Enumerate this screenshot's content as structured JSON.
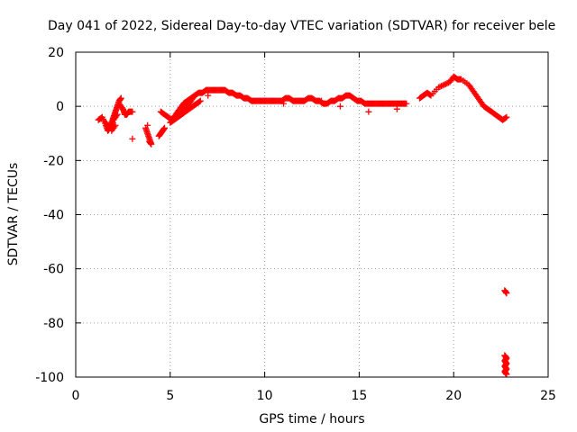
{
  "chart_data": {
    "type": "scatter",
    "title": "Day 041 of 2022, Sidereal Day-to-day VTEC variation (SDTVAR) for receiver bele",
    "xlabel": "GPS time / hours",
    "ylabel": "SDTVAR / TECUs",
    "xlim": [
      0,
      25
    ],
    "ylim": [
      -100,
      20
    ],
    "xticks": [
      "0",
      "5",
      "10",
      "15",
      "20",
      "25"
    ],
    "yticks": [
      "-100",
      "-80",
      "-60",
      "-40",
      "-20",
      "0",
      "20"
    ],
    "grid": true,
    "marker": "+",
    "color": "#ff0000",
    "series": [
      {
        "name": "SDTVAR",
        "x": [
          1.2,
          1.4,
          1.6,
          1.7,
          1.8,
          1.9,
          2.0,
          2.1,
          2.2,
          2.3,
          2.4,
          2.5,
          2.6,
          2.7,
          2.8,
          3.0,
          1.6,
          1.8,
          2.0,
          2.2,
          1.9,
          2.1,
          2.3,
          2.5,
          3.0,
          3.7,
          3.8,
          3.9,
          4.0,
          3.9,
          3.8,
          4.4,
          4.5,
          4.6,
          4.7,
          4.5,
          4.7,
          4.9,
          5.1,
          5.3,
          5.5,
          5.7,
          5.9,
          6.1,
          6.3,
          6.5,
          6.7,
          6.9,
          7.1,
          7.3,
          7.5,
          7.7,
          7.9,
          8.1,
          8.3,
          8.5,
          8.7,
          8.9,
          9.1,
          9.3,
          9.5,
          9.7,
          9.9,
          10.1,
          10.3,
          10.5,
          10.7,
          10.9,
          11.1,
          11.3,
          11.5,
          11.7,
          11.9,
          12.1,
          12.3,
          12.5,
          12.7,
          12.9,
          13.1,
          13.3,
          13.5,
          13.7,
          13.9,
          14.1,
          14.3,
          14.5,
          14.7,
          14.9,
          15.1,
          15.3,
          15.5,
          15.7,
          15.9,
          16.1,
          16.3,
          16.5,
          16.7,
          16.9,
          17.1,
          17.3,
          17.5,
          5.0,
          5.2,
          5.4,
          5.6,
          5.8,
          6.0,
          6.2,
          6.4,
          6.6,
          5.2,
          5.4,
          5.6,
          5.8,
          6.0,
          6.2,
          7.0,
          9.0,
          11.0,
          13.0,
          14.0,
          15.5,
          17.0,
          18.2,
          18.4,
          18.6,
          18.8,
          19.2,
          19.5,
          19.8,
          20.0,
          20.2,
          20.4,
          20.8,
          21.0,
          21.2,
          21.4,
          21.6,
          21.8,
          22.0,
          22.2,
          22.4,
          22.6,
          22.8,
          22.7,
          22.8,
          22.7,
          22.8,
          22.7,
          22.8,
          22.7,
          22.8,
          22.7,
          22.8
        ],
        "y": [
          -5,
          -4,
          -7,
          -9,
          -8,
          -6,
          -4,
          -2,
          0,
          2,
          3,
          -1,
          -3,
          -3,
          -2,
          -2,
          -6,
          -8,
          -5,
          -3,
          -9,
          -7,
          1,
          -1,
          -12,
          -8,
          -10,
          -12,
          -14,
          -13,
          -7,
          -11,
          -10,
          -9,
          -8,
          -2,
          -3,
          -4,
          -5,
          -3,
          -1,
          1,
          2,
          3,
          4,
          5,
          5,
          6,
          6,
          6,
          6,
          6,
          6,
          5,
          5,
          4,
          4,
          3,
          3,
          2,
          2,
          2,
          2,
          2,
          2,
          2,
          2,
          2,
          3,
          3,
          2,
          2,
          2,
          2,
          3,
          3,
          2,
          2,
          1,
          1,
          2,
          2,
          3,
          3,
          4,
          4,
          3,
          2,
          2,
          1,
          1,
          1,
          1,
          1,
          1,
          1,
          1,
          1,
          1,
          1,
          1,
          -6,
          -5,
          -4,
          -3,
          -2,
          -1,
          0,
          1,
          2,
          -4,
          -2,
          -1,
          0,
          1,
          3,
          4,
          3,
          1,
          2,
          0,
          -2,
          -1,
          3,
          4,
          5,
          4,
          7,
          8,
          9,
          11,
          10,
          10,
          8,
          6,
          4,
          2,
          0,
          -1,
          -2,
          -3,
          -4,
          -5,
          -4,
          -68,
          -69,
          -92,
          -93,
          -94,
          -95,
          -96,
          -97,
          -98,
          -99
        ]
      }
    ]
  }
}
